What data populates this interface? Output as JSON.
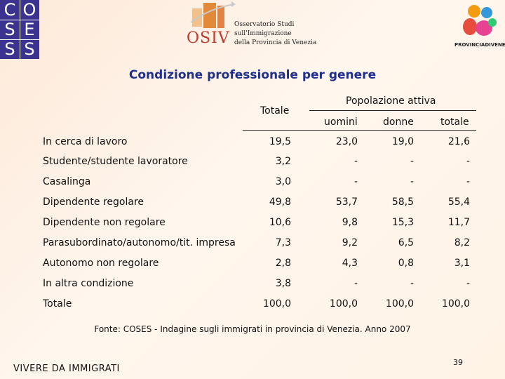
{
  "logos": {
    "coses_letters": [
      "C",
      "O",
      "S",
      "E",
      "S",
      "S"
    ],
    "osiv_text": "OSIV",
    "osiv_lines": [
      "Osservatorio Studi",
      "sull'Immigrazione",
      "della Provincia di Venezia"
    ],
    "provincia_label": "PROVINCIADIVENEZIA"
  },
  "title": "Condizione professionale per genere",
  "table": {
    "header_totale": "Totale",
    "header_group": "Popolazione attiva",
    "sub_headers": [
      "uomini",
      "donne",
      "totale"
    ],
    "rows": [
      {
        "label": "In cerca di lavoro",
        "values": [
          "19,5",
          "23,0",
          "19,0",
          "21,6"
        ]
      },
      {
        "label": "Studente/studente lavoratore",
        "values": [
          "3,2",
          "-",
          "-",
          "-"
        ]
      },
      {
        "label": "Casalinga",
        "values": [
          "3,0",
          "-",
          "-",
          "-"
        ]
      },
      {
        "label": "Dipendente regolare",
        "values": [
          "49,8",
          "53,7",
          "58,5",
          "55,4"
        ]
      },
      {
        "label": "Dipendente non regolare",
        "values": [
          "10,6",
          "9,8",
          "15,3",
          "11,7"
        ]
      },
      {
        "label": "Parasubordinato/autonomo/tit. impresa",
        "values": [
          "7,3",
          "9,2",
          "6,5",
          "8,2"
        ]
      },
      {
        "label": "Autonomo non regolare",
        "values": [
          "2,8",
          "4,3",
          "0,8",
          "3,1"
        ]
      },
      {
        "label": "In altra condizione",
        "values": [
          "3,8",
          "-",
          "-",
          "-"
        ]
      },
      {
        "label": "Totale",
        "values": [
          "100,0",
          "100,0",
          "100,0",
          "100,0"
        ]
      }
    ]
  },
  "source": "Fonte: COSES - Indagine sugli immigrati in provincia di Venezia. Anno 2007",
  "footer": "VIVERE DA IMMIGRATI",
  "page_number": "39"
}
